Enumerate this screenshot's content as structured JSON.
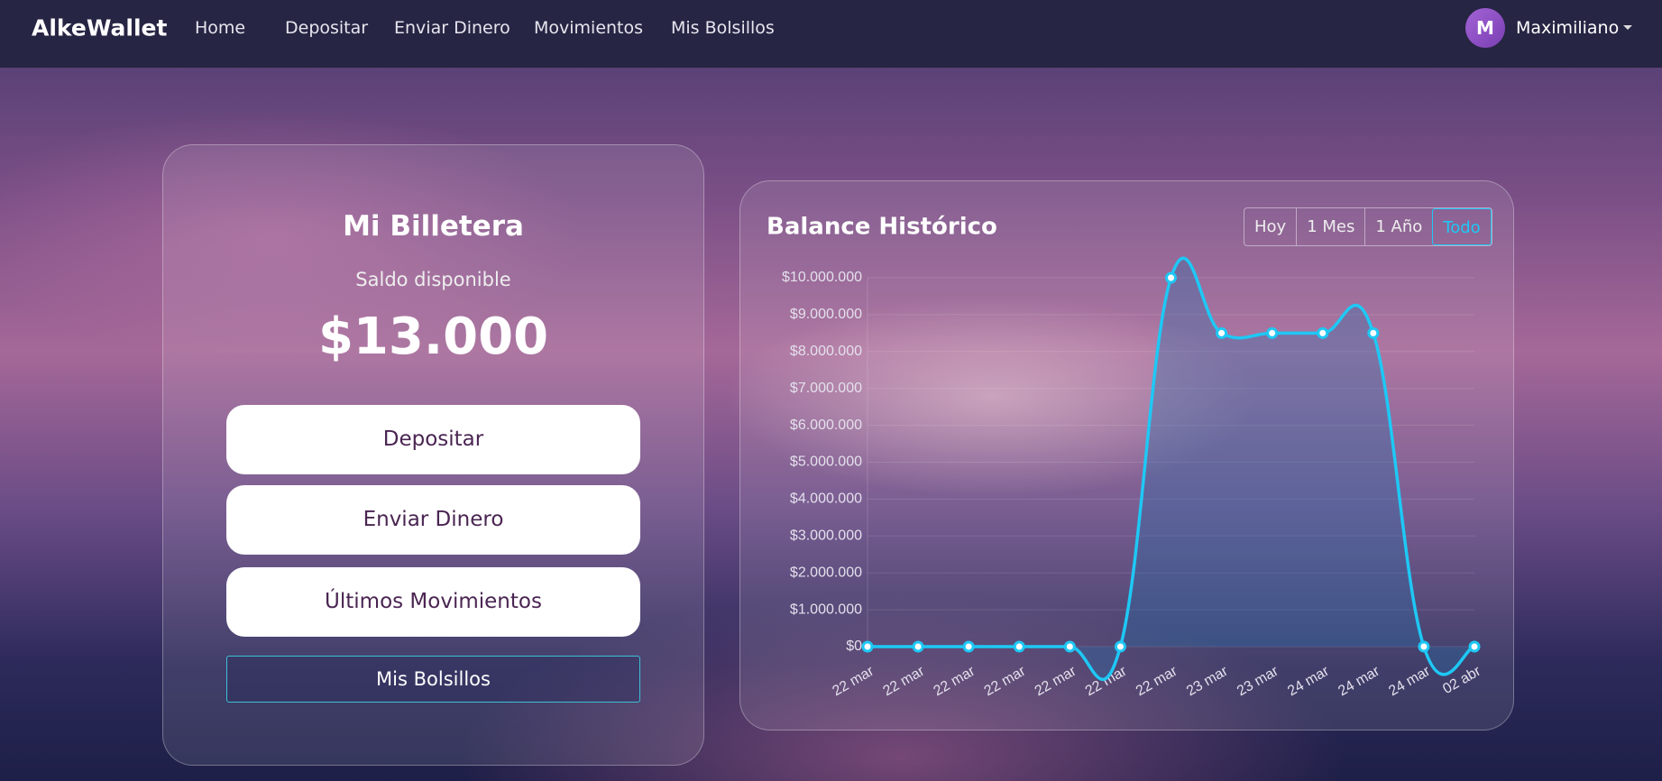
{
  "nav": {
    "brand": "AlkeWallet",
    "links": [
      "Home",
      "Depositar",
      "Enviar Dinero",
      "Movimientos",
      "Mis Bolsillos"
    ],
    "avatar": "M",
    "user": "Maximiliano"
  },
  "wallet": {
    "title": "Mi Billetera",
    "subtitle": "Saldo disponible",
    "balance": "$13.000",
    "buttons": [
      "Depositar",
      "Enviar Dinero",
      "Últimos Movimientos"
    ],
    "outline_button": "Mis Bolsillos"
  },
  "chart_data": {
    "type": "line",
    "title": "Balance Histórico",
    "ranges": [
      "Hoy",
      "1 Mes",
      "1 Año",
      "Todo"
    ],
    "active_range": "Todo",
    "categories": [
      "22 mar",
      "22 mar",
      "22 mar",
      "22 mar",
      "22 mar",
      "22 mar",
      "22 mar",
      "23 mar",
      "23 mar",
      "24 mar",
      "24 mar",
      "24 mar",
      "02 abr"
    ],
    "values": [
      0,
      0,
      0,
      0,
      0,
      0,
      10000000,
      8500000,
      8500000,
      8500000,
      8500000,
      0,
      0
    ],
    "color": "#1ec8f5",
    "grid": true,
    "ylim": [
      0,
      10000000
    ],
    "yticks": [
      {
        "value": 0,
        "label": "$0"
      },
      {
        "value": 1000000,
        "label": "$1.000.000"
      },
      {
        "value": 2000000,
        "label": "$2.000.000"
      },
      {
        "value": 3000000,
        "label": "$3.000.000"
      },
      {
        "value": 4000000,
        "label": "$4.000.000"
      },
      {
        "value": 5000000,
        "label": "$5.000.000"
      },
      {
        "value": 6000000,
        "label": "$6.000.000"
      },
      {
        "value": 7000000,
        "label": "$7.000.000"
      },
      {
        "value": 8000000,
        "label": "$8.000.000"
      },
      {
        "value": 9000000,
        "label": "$9.000.000"
      },
      {
        "value": 10000000,
        "label": "$10.000.000"
      }
    ]
  }
}
